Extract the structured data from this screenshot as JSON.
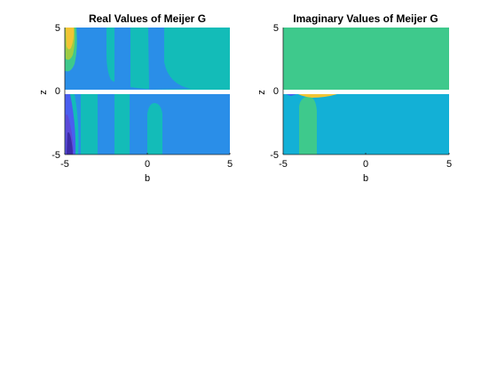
{
  "chart_data": [
    {
      "type": "contour",
      "title": "Real Values of Meijer G",
      "xlabel": "b",
      "ylabel": "z",
      "xlim": [
        -5,
        5
      ],
      "ylim": [
        -5,
        5
      ],
      "xticks": [
        "-5",
        "0",
        "5"
      ],
      "yticks": [
        "5",
        "0",
        "-5"
      ],
      "colors": [
        "#3c2ba8",
        "#4a5ef0",
        "#2a8ee8",
        "#13bcb8",
        "#3ec98c",
        "#9fcc44",
        "#f2c535"
      ],
      "bands": [
        {
          "x": [
            -5,
            -4.6
          ],
          "y": [
            0.1,
            5
          ],
          "color": "#3ec98c"
        },
        {
          "x": [
            -3.9,
            -2.8
          ],
          "y": [
            0.1,
            5
          ],
          "color": "#13bcb8"
        },
        {
          "x": [
            -1.9,
            -0.9
          ],
          "y": [
            0.1,
            5
          ],
          "color": "#13bcb8"
        },
        {
          "x": [
            -0.4,
            0.6
          ],
          "y": [
            0.1,
            5
          ],
          "color": "#2a8ee8"
        },
        {
          "x": [
            -4.1,
            -3.2
          ],
          "y": [
            -5,
            -0.2
          ],
          "color": "#13bcb8"
        },
        {
          "x": [
            -2.4,
            -1.6
          ],
          "y": [
            -5,
            -0.2
          ],
          "color": "#13bcb8"
        },
        {
          "x": [
            -1.2,
            -0.2
          ],
          "y": [
            -5,
            -0.2
          ],
          "color": "#2a8ee8"
        },
        {
          "x": [
            0.1,
            1.0
          ],
          "y": [
            -5,
            -1.5
          ],
          "color": "#13bcb8"
        }
      ]
    },
    {
      "type": "contour",
      "title": "Imaginary Values of Meijer G",
      "xlabel": "b",
      "ylabel": "z",
      "xlim": [
        -5,
        5
      ],
      "ylim": [
        -5,
        5
      ],
      "xticks": [
        "-5",
        "0",
        "5"
      ],
      "yticks": [
        "5",
        "0",
        "-5"
      ],
      "colors": [
        "#3ec98c",
        "#13b0d6",
        "#f2c535"
      ]
    }
  ]
}
